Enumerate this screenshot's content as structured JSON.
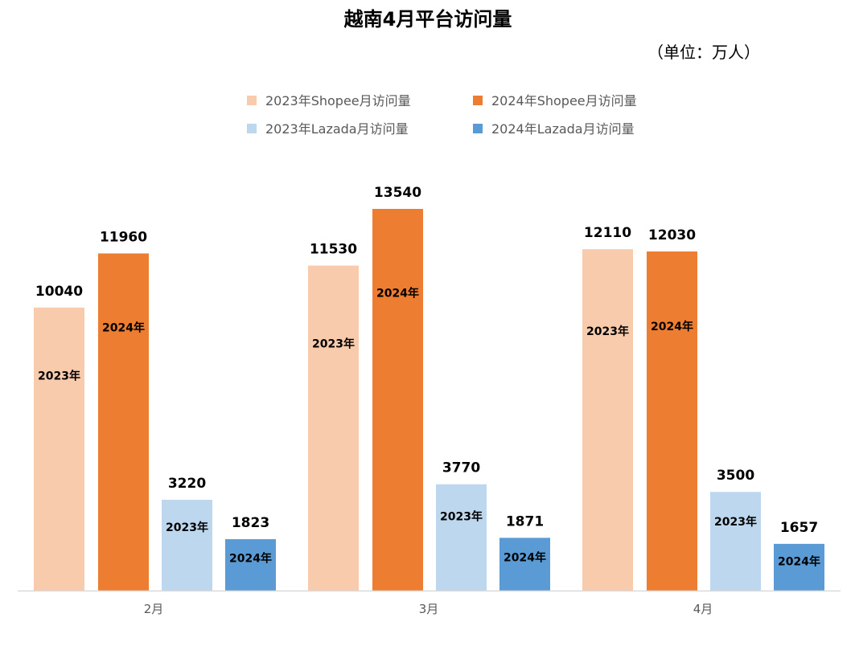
{
  "chart_data": {
    "type": "bar",
    "title": "越南4月平台访问量",
    "unit_note": "（单位：万人）",
    "categories": [
      "2月",
      "3月",
      "4月"
    ],
    "series": [
      {
        "name": "2023年Shopee月访问量",
        "values": [
          10040,
          11530,
          12110
        ],
        "color": "#F8CBAD",
        "inner_label": "2023年"
      },
      {
        "name": "2024年Shopee月访问量",
        "values": [
          11960,
          13540,
          12030
        ],
        "color": "#ED7D31",
        "inner_label": "2024年"
      },
      {
        "name": "2023年Lazada月访问量",
        "values": [
          3220,
          3770,
          3500
        ],
        "color": "#BDD7EE",
        "inner_label": "2023年"
      },
      {
        "name": "2024年Lazada月访问量",
        "values": [
          1823,
          1871,
          1657
        ],
        "color": "#5B9BD5",
        "inner_label": "2024年"
      }
    ],
    "ylim": [
      0,
      16000
    ],
    "grid": false,
    "legend_position": "top"
  }
}
